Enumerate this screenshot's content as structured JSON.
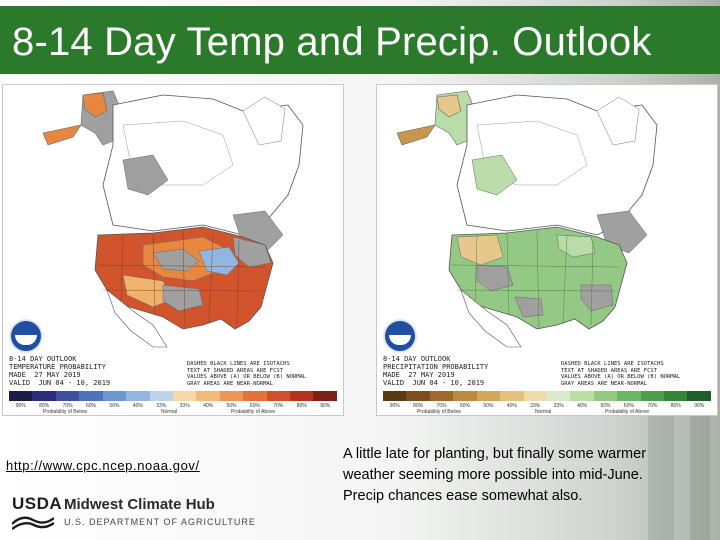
{
  "slide": {
    "title": "8-14 Day Temp and Precip. Outlook",
    "link": "http://www.cpc.ncep.noaa.gov/",
    "description": "A little late for planting, but finally some warmer weather seeming more possible into mid-June.  Precip chances ease somewhat also."
  },
  "temp_map": {
    "caption": "8-14 DAY OUTLOOK\nTEMPERATURE PROBABILITY\nMADE  27 MAY 2019\nVALID  JUN 04 - 10, 2019",
    "note": "DASHED BLACK LINES ARE ISOTACHS\nTEXT AT SHADED AREAS ARE FCST\nVALUES ABOVE (A) OR BELOW (B) NORMAL\nGRAY AREAS ARE NEAR-NORMAL",
    "legend_labels": [
      "90%",
      "80%",
      "70%",
      "60%",
      "50%",
      "40%",
      "33%",
      "33%",
      "40%",
      "50%",
      "60%",
      "70%",
      "80%",
      "90%"
    ],
    "legend_below": "Probability of Below",
    "legend_normal": "Normal",
    "legend_above": "Probability of Above",
    "colors": {
      "legend": [
        "#1d1b4a",
        "#2c2c7a",
        "#3f4ea0",
        "#4f72bd",
        "#6b96d0",
        "#92b6df",
        "#bdd3ec",
        "#f7d9a8",
        "#f3b97a",
        "#ec9753",
        "#e2743a",
        "#d24f2a",
        "#b5331e",
        "#7d1f14"
      ],
      "above_strong": "#d2542c",
      "above_mid": "#e8873f",
      "above_light": "#f0b26c",
      "near_normal": "#a0a0a0",
      "below": "#92b6df"
    }
  },
  "precip_map": {
    "caption": "8-14 DAY OUTLOOK\nPRECIPITATION PROBABILITY\nMADE  27 MAY 2019\nVALID  JUN 04 - 10, 2019",
    "note": "DASHED BLACK LINES ARE ISOTACHS\nTEXT AT SHADED AREAS ARE FCST\nVALUES ABOVE (A) OR BELOW (B) NORMAL\nGRAY AREAS ARE NEAR-NORMAL",
    "legend_labels": [
      "90%",
      "80%",
      "70%",
      "60%",
      "50%",
      "40%",
      "33%",
      "33%",
      "40%",
      "50%",
      "60%",
      "70%",
      "80%",
      "90%"
    ],
    "legend_below": "Probability of Below",
    "legend_normal": "Normal",
    "legend_above": "Probability of Above",
    "colors": {
      "legend": [
        "#5a3a14",
        "#7a4f1d",
        "#9c6a2b",
        "#bb8a3e",
        "#d2a75a",
        "#e4c27d",
        "#f0dca8",
        "#d8eccb",
        "#b8dea4",
        "#92cb80",
        "#6cb763",
        "#4f9e4c",
        "#36833a",
        "#1f5e28"
      ],
      "above_mid": "#93c985",
      "above_light": "#b9dca8",
      "below_light": "#e6c88d",
      "below_dark": "#c9964d",
      "near_normal": "#a0a0a0"
    }
  },
  "logo": {
    "agency": "USDA",
    "hub": "Midwest Climate Hub",
    "dept": "U.S. DEPARTMENT OF AGRICULTURE"
  }
}
